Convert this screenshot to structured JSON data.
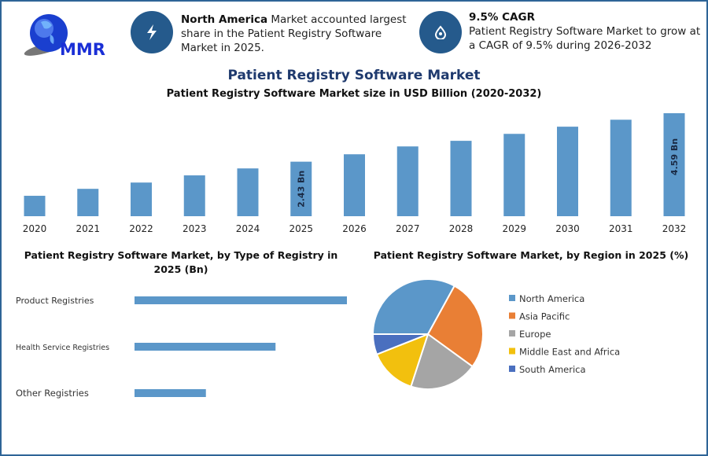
{
  "logo": {
    "text": "MMR"
  },
  "highlights": [
    {
      "icon": "lightning-icon",
      "bold": "North America",
      "text": " Market accounted largest share in the Patient Registry Software Market in 2025."
    },
    {
      "icon": "drop-icon",
      "bold": "9.5% CAGR",
      "text": "Patient Registry Software Market to grow at a CAGR of 9.5% during 2026-2032"
    }
  ],
  "colors": {
    "accent": "#255a8c",
    "title": "#1f3a6e",
    "bar": "#5b97c9",
    "border": "#2e6497"
  },
  "chart_data": [
    {
      "type": "bar",
      "title": "Patient Registry Software Market",
      "subtitle": "Patient Registry Software Market size in USD Billion (2020-2032)",
      "categories": [
        "2020",
        "2021",
        "2022",
        "2023",
        "2024",
        "2025",
        "2026",
        "2027",
        "2028",
        "2029",
        "2030",
        "2031",
        "2032"
      ],
      "values": [
        0.91,
        1.22,
        1.5,
        1.82,
        2.13,
        2.43,
        2.76,
        3.11,
        3.36,
        3.67,
        3.99,
        4.3,
        4.59
      ],
      "data_labels": {
        "2025": "2.43 Bn",
        "2032": "4.59 Bn"
      },
      "ylim": [
        0,
        4.8
      ],
      "grid": false
    },
    {
      "type": "bar",
      "orientation": "horizontal",
      "title": "Patient Registry Software Market, by Type of Registry in 2025 (Bn)",
      "categories": [
        "Product Registries",
        "Health Service Registries",
        "Other Registries"
      ],
      "values": [
        1.22,
        0.81,
        0.41
      ]
    },
    {
      "type": "pie",
      "title": "Patient Registry Software Market, by Region in 2025 (%)",
      "legend_position": "right",
      "labels": [
        "North America",
        "Asia Pacific",
        "Europe",
        "Middle East and Africa",
        "South America"
      ],
      "values": [
        33,
        27,
        20,
        14,
        6
      ],
      "colors": [
        "#5b97c9",
        "#e97f35",
        "#a5a5a5",
        "#f2c00e",
        "#4a6fbf"
      ]
    }
  ]
}
